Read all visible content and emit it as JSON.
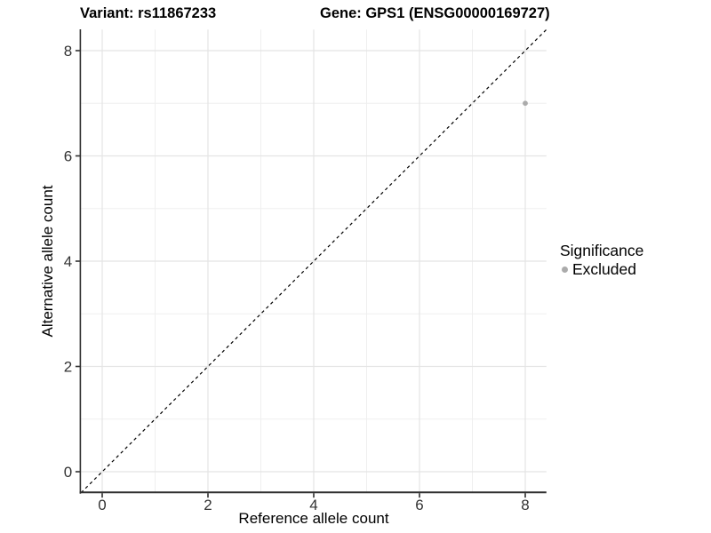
{
  "chart_data": {
    "type": "scatter",
    "title_left": "Variant: rs11867233",
    "title_right": "Gene: GPS1 (ENSG00000169727)",
    "xlabel": "Reference allele count",
    "ylabel": "Alternative allele count",
    "xlim": [
      -0.4,
      8.4
    ],
    "ylim": [
      -0.4,
      8.4
    ],
    "x_major_ticks": [
      0,
      2,
      4,
      6,
      8
    ],
    "y_major_ticks": [
      0,
      2,
      4,
      6,
      8
    ],
    "x_minor_gridlines": [
      1,
      3,
      5,
      7
    ],
    "y_minor_gridlines": [
      1,
      3,
      5,
      7
    ],
    "grid": true,
    "background": "#ffffff",
    "series": [
      {
        "name": "Excluded",
        "color": "#ababab",
        "marker": "circle",
        "points": [
          {
            "x": 8,
            "y": 7
          }
        ]
      }
    ],
    "reference_line": {
      "slope": 1,
      "intercept": 0,
      "style": "dashed",
      "color": "#000000"
    },
    "legend": {
      "position": "right",
      "title": "Significance",
      "items": [
        {
          "label": "Excluded",
          "color": "#ababab",
          "marker": "circle"
        }
      ]
    },
    "colors": {
      "major_grid": "#e4e4e4",
      "minor_grid": "#efefef",
      "axis_line": "#2f2f2f",
      "tick_mark": "#2f2f2f",
      "tick_label": "#333333"
    }
  }
}
